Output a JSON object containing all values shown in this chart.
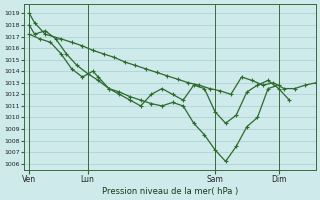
{
  "background_color": "#ceeaea",
  "grid_color": "#a8d0d0",
  "line_color": "#2d6a2d",
  "ylabel": "Pression niveau de la mer( hPa )",
  "ylim_min": 1005.5,
  "ylim_max": 1019.8,
  "yticks": [
    1006,
    1007,
    1008,
    1009,
    1010,
    1011,
    1012,
    1013,
    1014,
    1015,
    1016,
    1017,
    1018,
    1019
  ],
  "xtick_labels": [
    "Ven",
    "Lun",
    "Sam",
    "Dim"
  ],
  "series_A_x": [
    0,
    1,
    3,
    6,
    8,
    10,
    12,
    14,
    16,
    18,
    20,
    22,
    24,
    26,
    28,
    30,
    32,
    34,
    36,
    38,
    40,
    42,
    44,
    46,
    48,
    50,
    52,
    54
  ],
  "series_A_y": [
    1019.0,
    1018.2,
    1017.2,
    1016.8,
    1016.5,
    1016.2,
    1015.8,
    1015.5,
    1015.2,
    1014.8,
    1014.5,
    1014.2,
    1013.9,
    1013.6,
    1013.3,
    1013.0,
    1012.8,
    1012.5,
    1012.3,
    1012.0,
    1013.5,
    1013.2,
    1012.8,
    1013.0,
    1012.5,
    1012.5,
    1012.8,
    1013.0
  ],
  "series_B_x": [
    0,
    1,
    3,
    5,
    7,
    9,
    11,
    13,
    15,
    17,
    19,
    21,
    23,
    25,
    27,
    29,
    31,
    33,
    35,
    37,
    39,
    41,
    43,
    45,
    47
  ],
  "series_B_y": [
    1018.0,
    1017.2,
    1017.5,
    1016.8,
    1015.5,
    1014.5,
    1013.8,
    1013.2,
    1012.5,
    1012.2,
    1011.8,
    1011.5,
    1011.2,
    1011.0,
    1011.3,
    1011.0,
    1009.5,
    1008.5,
    1007.2,
    1006.2,
    1007.5,
    1009.2,
    1010.0,
    1012.5,
    1012.8
  ],
  "series_C_x": [
    0,
    2,
    4,
    6,
    8,
    10,
    12,
    13,
    15,
    17,
    19,
    21,
    23,
    25,
    27,
    29,
    31,
    33,
    35,
    37,
    39,
    41,
    43,
    45,
    47,
    49
  ],
  "series_C_y": [
    1017.2,
    1016.8,
    1016.5,
    1015.5,
    1014.2,
    1013.5,
    1014.0,
    1013.5,
    1012.5,
    1012.0,
    1011.5,
    1011.0,
    1012.0,
    1012.5,
    1012.0,
    1011.5,
    1012.8,
    1012.5,
    1010.5,
    1009.5,
    1010.2,
    1012.2,
    1012.8,
    1013.2,
    1012.5,
    1011.5
  ]
}
